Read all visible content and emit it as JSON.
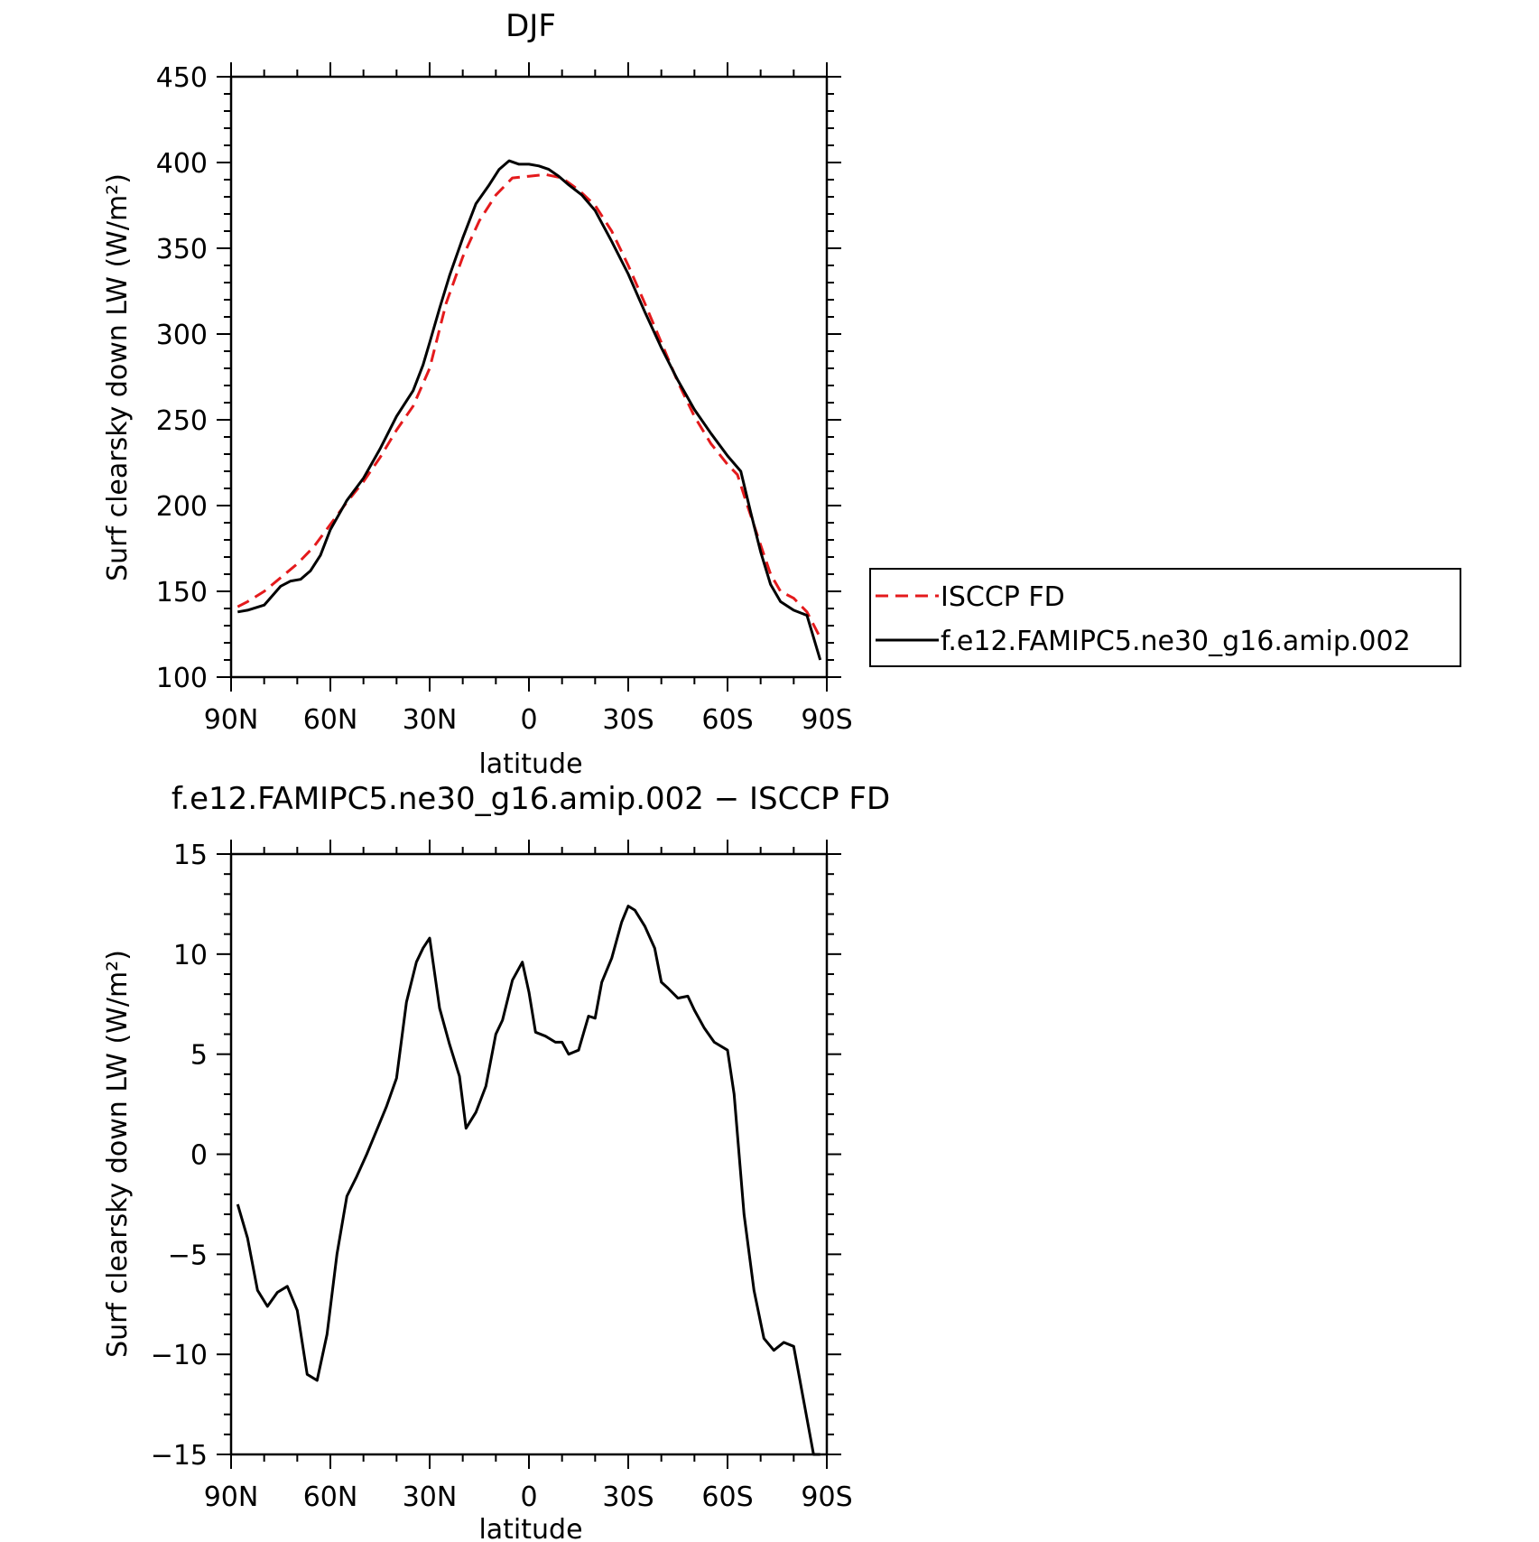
{
  "figure": {
    "top_title": "DJF",
    "bottom_title": "f.e12.FAMIPC5.ne30_g16.amip.002 − ISCCP FD"
  },
  "chart_data": [
    {
      "type": "line",
      "title": "DJF",
      "xlabel": "latitude",
      "ylabel": "Surf clearsky down LW (W/m²)",
      "xlim": [
        90,
        -90
      ],
      "ylim": [
        100,
        450
      ],
      "xticks": [
        90,
        60,
        30,
        0,
        -30,
        -60,
        -90
      ],
      "xtick_labels": [
        "90N",
        "60N",
        "30N",
        "0",
        "30S",
        "60S",
        "90S"
      ],
      "yticks": [
        100,
        150,
        200,
        250,
        300,
        350,
        400,
        450
      ],
      "ytick_labels": [
        "100",
        "150",
        "200",
        "250",
        "300",
        "350",
        "400",
        "450"
      ],
      "legend_position": "right",
      "series": [
        {
          "name": "ISCCP FD",
          "color": "#e41a1c",
          "style": "dashed",
          "x": [
            88,
            85,
            80,
            75,
            70,
            65,
            60,
            55,
            50,
            45,
            40,
            35,
            30,
            25,
            20,
            15,
            10,
            5,
            0,
            -5,
            -10,
            -15,
            -20,
            -25,
            -30,
            -35,
            -40,
            -45,
            -50,
            -55,
            -60,
            -63,
            -66,
            -70,
            -73,
            -76,
            -80,
            -84,
            -88
          ],
          "y": [
            141,
            144,
            150,
            158,
            166,
            176,
            189,
            202,
            214,
            228,
            244,
            258,
            280,
            318,
            345,
            366,
            381,
            391,
            392,
            393,
            391,
            384,
            375,
            360,
            340,
            318,
            295,
            272,
            252,
            236,
            224,
            218,
            200,
            177,
            160,
            150,
            146,
            138,
            123
          ]
        },
        {
          "name": "f.e12.FAMIPC5.ne30_g16.amip.002",
          "color": "#000000",
          "style": "solid",
          "x": [
            88,
            85,
            80,
            75,
            72,
            69,
            66,
            63,
            60,
            55,
            50,
            45,
            40,
            35,
            32,
            30,
            27,
            24,
            20,
            16,
            12,
            9,
            6,
            3,
            0,
            -3,
            -6,
            -9,
            -12,
            -16,
            -20,
            -25,
            -30,
            -35,
            -40,
            -45,
            -50,
            -55,
            -60,
            -64,
            -67,
            -70,
            -73,
            -76,
            -80,
            -84,
            -88
          ],
          "y": [
            138,
            139,
            142,
            153,
            156,
            157,
            162,
            171,
            186,
            203,
            216,
            233,
            252,
            267,
            282,
            295,
            315,
            334,
            356,
            376,
            387,
            396,
            401,
            399,
            399,
            398,
            396,
            392,
            387,
            381,
            372,
            354,
            335,
            313,
            292,
            273,
            256,
            242,
            229,
            220,
            196,
            173,
            154,
            144,
            139,
            136,
            110
          ]
        }
      ]
    },
    {
      "type": "line",
      "title": "f.e12.FAMIPC5.ne30_g16.amip.002 − ISCCP FD",
      "xlabel": "latitude",
      "ylabel": "Surf clearsky down LW (W/m²)",
      "xlim": [
        90,
        -90
      ],
      "ylim": [
        -15,
        15
      ],
      "xticks": [
        90,
        60,
        30,
        0,
        -30,
        -60,
        -90
      ],
      "xtick_labels": [
        "90N",
        "60N",
        "30N",
        "0",
        "30S",
        "60S",
        "90S"
      ],
      "yticks": [
        -15,
        -10,
        -5,
        0,
        5,
        10,
        15
      ],
      "ytick_labels": [
        "−15",
        "−10",
        "−5",
        "0",
        "5",
        "10",
        "15"
      ],
      "series": [
        {
          "color": "#000000",
          "style": "solid",
          "x": [
            88,
            85,
            82,
            79,
            76,
            73,
            70,
            67,
            64,
            61,
            58,
            55,
            52,
            49,
            46,
            43,
            40,
            37,
            34,
            32,
            30,
            27,
            24,
            21,
            19,
            16,
            13,
            10,
            8,
            5,
            2,
            0,
            -2,
            -5,
            -8,
            -10,
            -12,
            -15,
            -18,
            -20,
            -22,
            -25,
            -28,
            -30,
            -32,
            -35,
            -38,
            -40,
            -42,
            -45,
            -48,
            -50,
            -53,
            -56,
            -60,
            -62,
            -65,
            -68,
            -71,
            -74,
            -77,
            -80,
            -83,
            -86,
            -88
          ],
          "y": [
            -2.5,
            -4.2,
            -6.8,
            -7.6,
            -6.9,
            -6.6,
            -7.8,
            -11.0,
            -11.3,
            -9.0,
            -5.0,
            -2.1,
            -1.1,
            0.0,
            1.2,
            2.4,
            3.8,
            7.6,
            9.6,
            10.3,
            10.8,
            7.3,
            5.5,
            3.9,
            1.3,
            2.1,
            3.4,
            6.0,
            6.7,
            8.7,
            9.6,
            8.1,
            6.1,
            5.9,
            5.6,
            5.6,
            5.0,
            5.2,
            6.9,
            6.8,
            8.6,
            9.8,
            11.6,
            12.4,
            12.2,
            11.4,
            10.3,
            8.6,
            8.3,
            7.8,
            7.9,
            7.2,
            6.3,
            5.6,
            5.2,
            3.0,
            -3.0,
            -6.8,
            -9.2,
            -9.8,
            -9.4,
            -9.6,
            -12.3,
            -15.0,
            -15.0
          ]
        }
      ]
    }
  ]
}
